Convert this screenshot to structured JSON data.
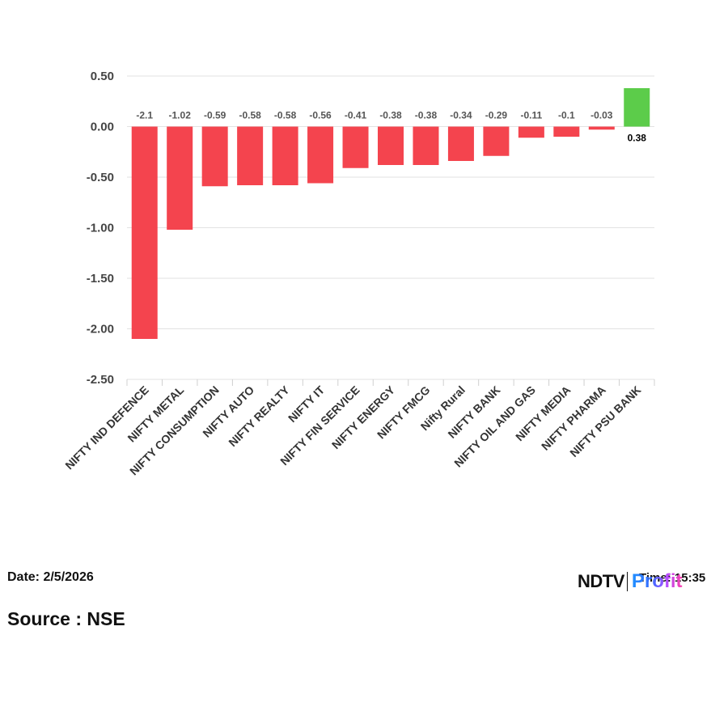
{
  "chart_data": {
    "type": "bar",
    "categories": [
      "NIFTY IND DEFENCE",
      "NIFTY METAL",
      "NIFTY CONSUMPTION",
      "NIFTY AUTO",
      "NIFTY REALTY",
      "NIFTY IT",
      "NIFTY FIN SERVICE",
      "NIFTY ENERGY",
      "NIFTY FMCG",
      "Nifty Rural",
      "NIFTY BANK",
      "NIFTY OIL AND GAS",
      "NIFTY MEDIA",
      "NIFTY PHARMA",
      "NIFTY PSU BANK"
    ],
    "values": [
      -2.1,
      -1.02,
      -0.59,
      -0.58,
      -0.58,
      -0.56,
      -0.41,
      -0.38,
      -0.38,
      -0.34,
      -0.29,
      -0.11,
      -0.1,
      -0.03,
      0.38
    ],
    "value_labels": [
      "-2.1",
      "-1.02",
      "-0.59",
      "-0.58",
      "-0.58",
      "-0.56",
      "-0.41",
      "-0.38",
      "-0.38",
      "-0.34",
      "-0.29",
      "-0.11",
      "-0.1",
      "-0.03",
      "0.38"
    ],
    "yticks": [
      0.5,
      0.0,
      -0.5,
      -1.0,
      -1.5,
      -2.0,
      -2.5
    ],
    "ytick_labels": [
      "0.50",
      "0.00",
      "-0.50",
      "-1.00",
      "-1.50",
      "-2.00",
      "-2.50"
    ],
    "ylim": [
      -2.5,
      0.5
    ],
    "grid": true,
    "colors": {
      "negative": "#f4444e",
      "positive": "#5ccc4a"
    }
  },
  "footer": {
    "date": "Date: 2/5/2026",
    "source": "Source : NSE",
    "time": "Time: 15:35",
    "logo_left": "NDTV",
    "logo_right": "Profit"
  }
}
